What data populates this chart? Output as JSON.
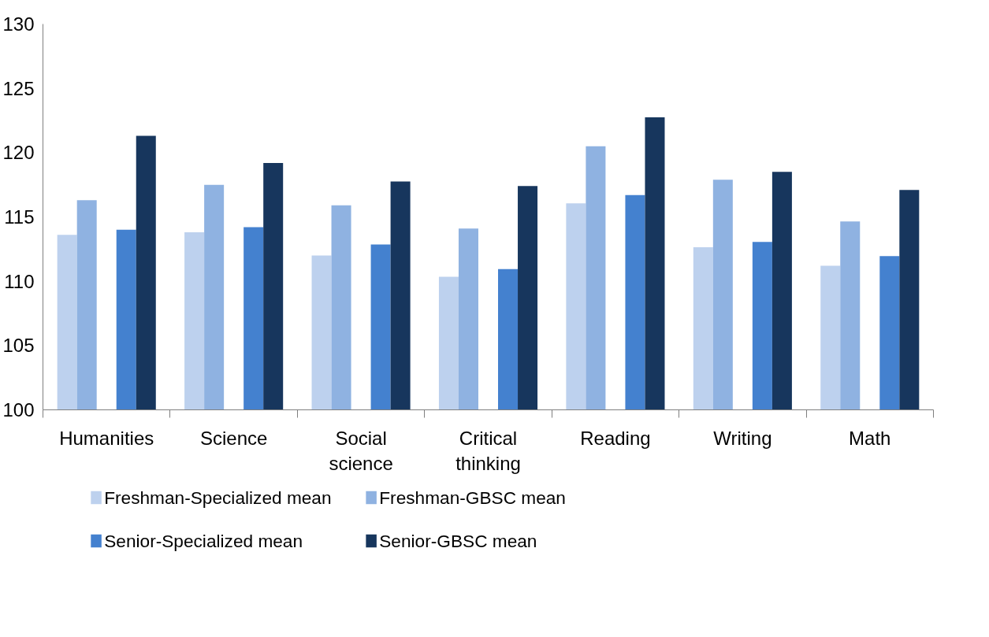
{
  "chart_data": {
    "type": "bar",
    "categories": [
      "Humanities",
      "Science",
      "Social science",
      "Critical thinking",
      "Reading",
      "Writing",
      "Math"
    ],
    "series": [
      {
        "name": "Freshman-Specialized mean",
        "color": "#bdd1ee",
        "values": [
          113.6,
          113.8,
          112.0,
          110.35,
          116.05,
          112.65,
          111.2
        ]
      },
      {
        "name": "Freshman-GBSC mean",
        "color": "#8fb2e1",
        "values": [
          116.3,
          117.5,
          115.9,
          114.1,
          120.5,
          117.9,
          114.65
        ]
      },
      {
        "name": "Senior-Specialized mean",
        "color": "#4481cf",
        "values": [
          114.0,
          114.2,
          112.85,
          110.95,
          116.7,
          113.05,
          111.95
        ]
      },
      {
        "name": "Senior-GBSC mean",
        "color": "#17365d",
        "values": [
          121.3,
          119.2,
          117.75,
          117.4,
          122.75,
          118.5,
          117.1
        ]
      }
    ],
    "ylim": [
      100,
      130
    ],
    "yticks": [
      100,
      105,
      110,
      115,
      120,
      125,
      130
    ],
    "grid": false,
    "legend": "bottom"
  }
}
